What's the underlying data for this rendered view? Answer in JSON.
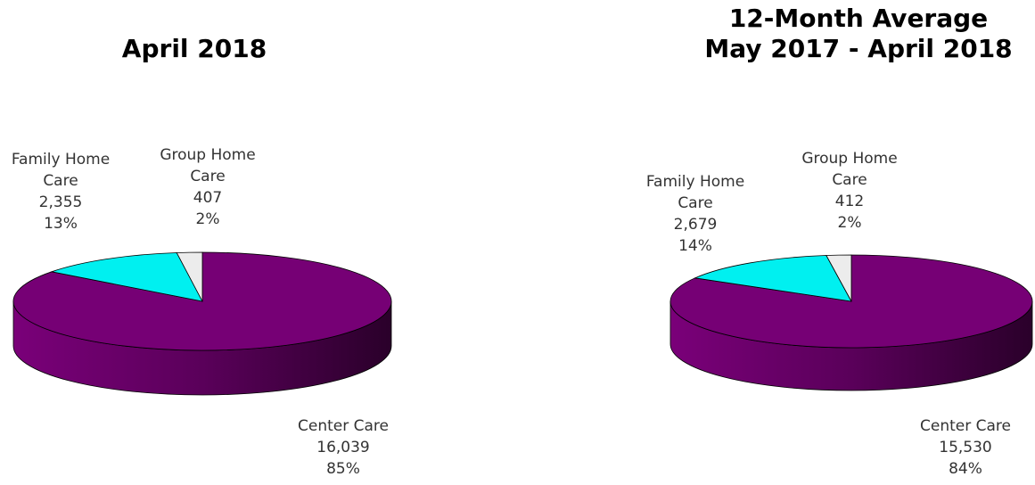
{
  "chart_data": [
    {
      "type": "pie",
      "title": "April 2018",
      "categories": [
        "Center Care",
        "Family Home Care",
        "Group Home Care"
      ],
      "values": [
        16039,
        2355,
        407
      ],
      "value_labels": [
        "16,039",
        "2,355",
        "407"
      ],
      "shares": [
        85,
        13,
        2
      ],
      "share_labels": [
        "85%",
        "13%",
        "2%"
      ],
      "colors": [
        "#760075",
        "#00f0f0",
        "#ececec"
      ]
    },
    {
      "type": "pie",
      "title": "12-Month Average",
      "subtitle": "May 2017 -  April 2018",
      "categories": [
        "Center Care",
        "Family Home Care",
        "Group Home Care"
      ],
      "values": [
        15530,
        2679,
        412
      ],
      "value_labels": [
        "15,530",
        "2,679",
        "412"
      ],
      "shares": [
        84,
        14,
        2
      ],
      "share_labels": [
        "84%",
        "14%",
        "2%"
      ],
      "colors": [
        "#760075",
        "#00f0f0",
        "#ececec"
      ]
    }
  ]
}
